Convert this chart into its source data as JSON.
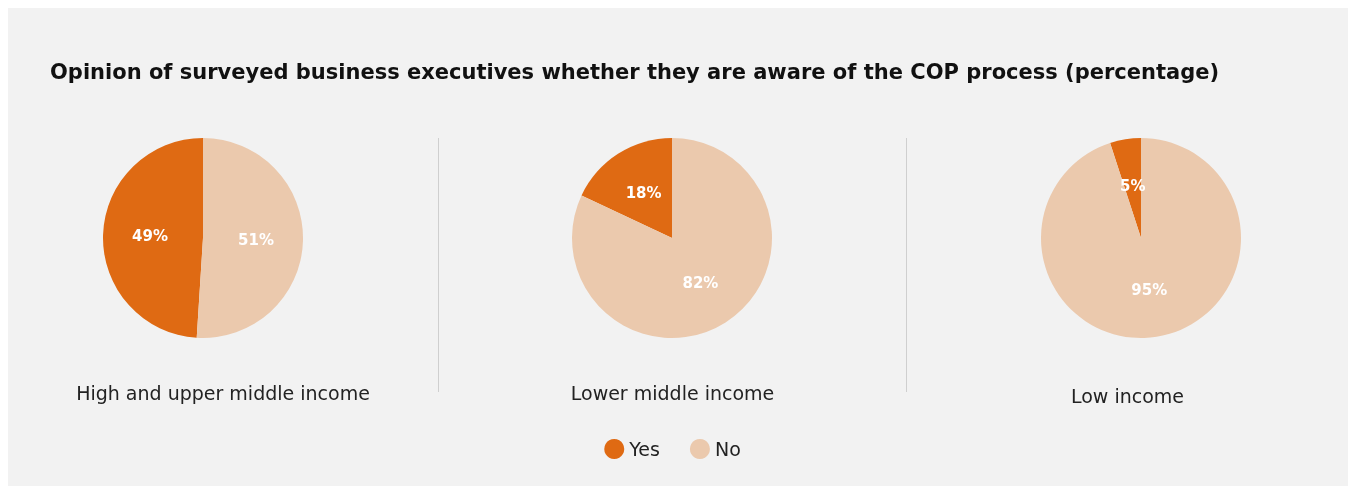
{
  "chart_data": [
    {
      "type": "pie",
      "title": "Opinion of surveyed business executives whether they are aware of the COP process (percentage)",
      "xlabel": "High and upper middle income",
      "categories": [
        null,
        null
      ],
      "values": [
        49,
        51
      ],
      "value_labels": [
        "49%",
        "51%"
      ],
      "colors": [
        "#df6a13",
        "#ebc9ad"
      ]
    },
    {
      "type": "pie",
      "xlabel": "Lower middle income",
      "categories": [
        "Yes",
        "No"
      ],
      "values": [
        18,
        82
      ],
      "value_labels": [
        "18%",
        "82%"
      ],
      "colors": [
        "#df6a13",
        "#ebc9ad"
      ],
      "legend": "bottom"
    },
    {
      "type": "pie",
      "xlabel": "Low income",
      "categories": [
        null,
        null
      ],
      "values": [
        5,
        95
      ],
      "value_labels": [
        "5%",
        "95%"
      ],
      "colors": [
        "#df6a13",
        "#ebc9ad"
      ]
    }
  ]
}
